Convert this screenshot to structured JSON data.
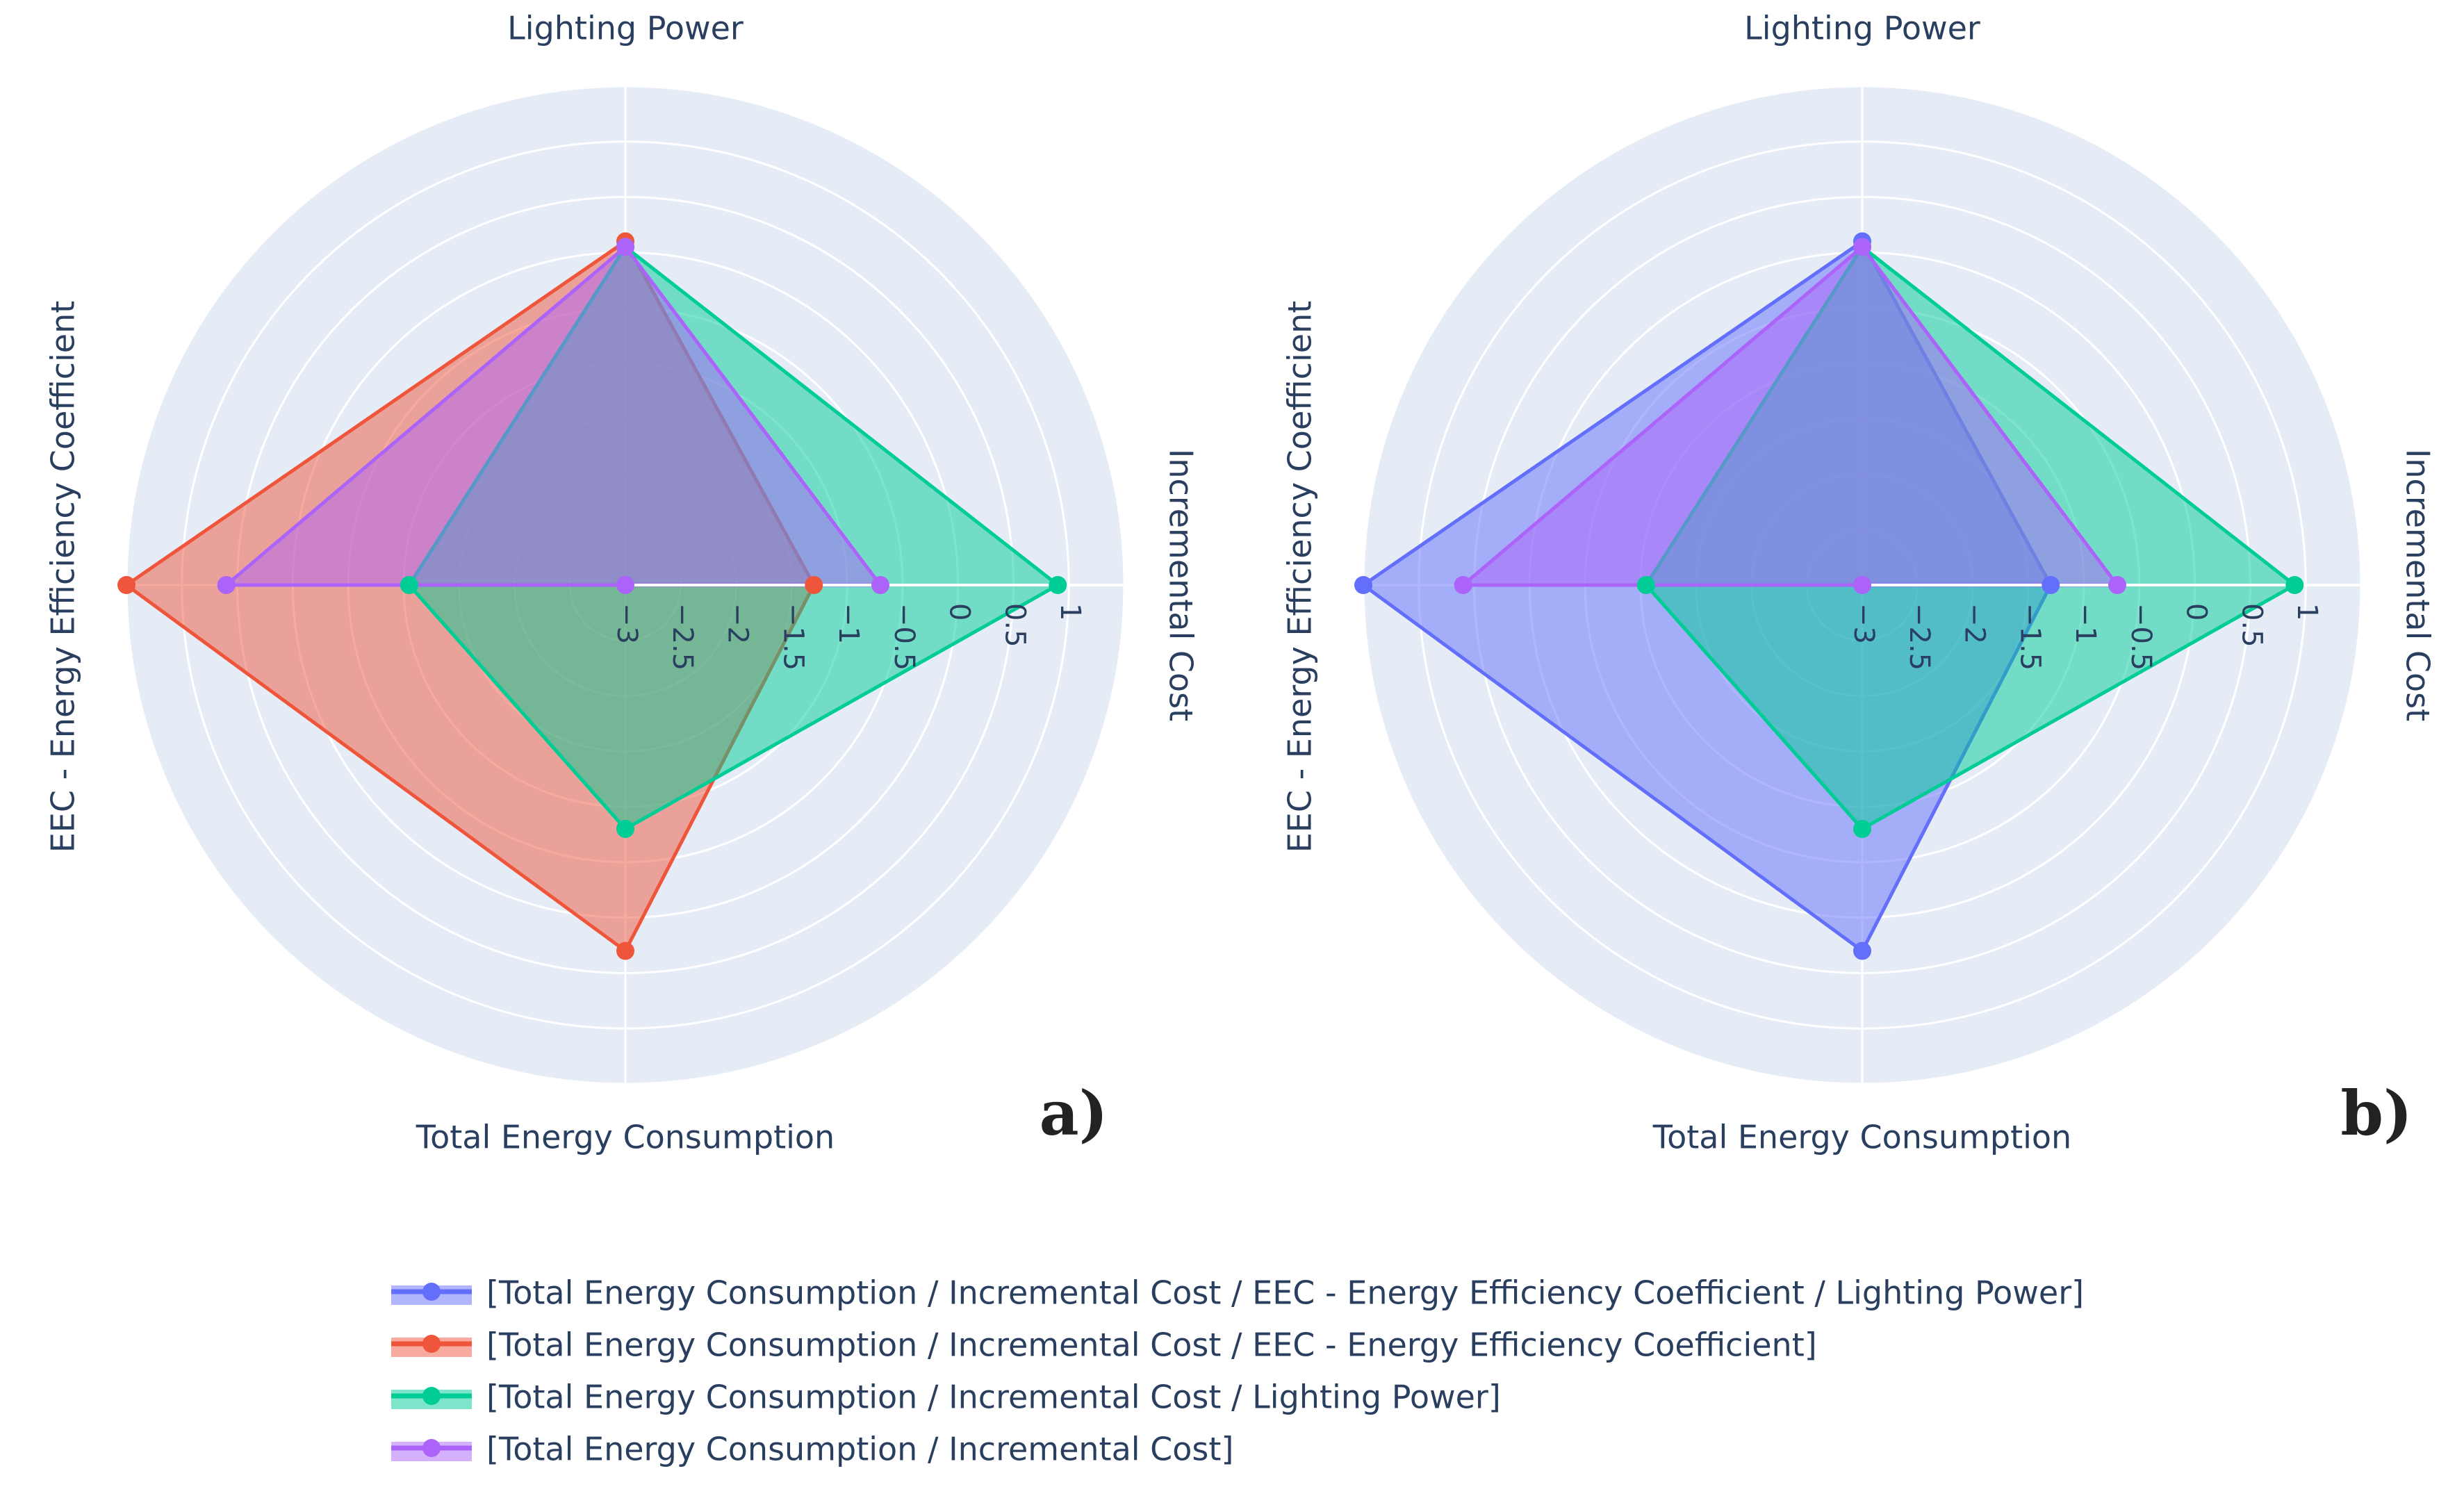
{
  "chart_data": [
    {
      "type": "radar",
      "panel_label": "a)",
      "axes": [
        "Lighting Power",
        "Incremental Cost",
        "Total Energy Consumption",
        "EEC - Energy Efficiency Coefficient"
      ],
      "radial_range": [
        -3,
        1.5
      ],
      "tick_values": [
        -3,
        -2.5,
        -2,
        -1.5,
        -1,
        -0.5,
        0,
        0.5,
        1
      ],
      "tick_labels": [
        "−3",
        "−2.5",
        "−2",
        "−1.5",
        "−1",
        "−0.5",
        "0",
        "0.5",
        "1"
      ],
      "grid": true,
      "series": [
        {
          "name": "[Total Energy Consumption / Incremental Cost / EEC - Energy Efficiency Coefficient]",
          "color": "#EF553B",
          "values": [
            0.1,
            -1.3,
            0.3,
            1.5
          ]
        },
        {
          "name": "[Total Energy Consumption / Incremental Cost / Lighting Power]",
          "color": "#00CC96",
          "values": [
            0.05,
            0.9,
            -0.8,
            -1.05
          ]
        },
        {
          "name": "[Total Energy Consumption / Incremental Cost]",
          "color": "#AB63FA",
          "values": [
            0.05,
            -0.7,
            -3.0,
            0.6
          ]
        }
      ]
    },
    {
      "type": "radar",
      "panel_label": "b)",
      "axes": [
        "Lighting Power",
        "Incremental Cost",
        "Total Energy Consumption",
        "EEC - Energy Efficiency Coefficient"
      ],
      "radial_range": [
        -3,
        1.5
      ],
      "tick_values": [
        -3,
        -2.5,
        -2,
        -1.5,
        -1,
        -0.5,
        0,
        0.5,
        1
      ],
      "tick_labels": [
        "−3",
        "−2.5",
        "−2",
        "−1.5",
        "−1",
        "−0.5",
        "0",
        "0.5",
        "1"
      ],
      "grid": true,
      "series": [
        {
          "name": "[Total Energy Consumption / Incremental Cost / EEC - Energy Efficiency Coefficient / Lighting Power]",
          "color": "#636EFA",
          "values": [
            0.1,
            -1.3,
            0.3,
            1.5
          ]
        },
        {
          "name": "[Total Energy Consumption / Incremental Cost / Lighting Power]",
          "color": "#00CC96",
          "values": [
            0.05,
            0.9,
            -0.8,
            -1.05
          ]
        },
        {
          "name": "[Total Energy Consumption / Incremental Cost]",
          "color": "#AB63FA",
          "values": [
            0.05,
            -0.7,
            -3.0,
            0.6
          ]
        }
      ]
    }
  ],
  "legend": {
    "placement": "bottom-center",
    "items": [
      {
        "label": "[Total Energy Consumption / Incremental Cost / EEC - Energy Efficiency Coefficient / Lighting Power]",
        "color": "#636EFA"
      },
      {
        "label": "[Total Energy Consumption / Incremental Cost / EEC - Energy Efficiency Coefficient]",
        "color": "#EF553B"
      },
      {
        "label": "[Total Energy Consumption / Incremental Cost / Lighting Power]",
        "color": "#00CC96"
      },
      {
        "label": "[Total Energy Consumption / Incremental Cost]",
        "color": "#AB63FA"
      }
    ]
  },
  "colors": {
    "polar_background": "#E5ECF6",
    "grid": "#FFFFFF",
    "text": "#2a3f5f"
  }
}
